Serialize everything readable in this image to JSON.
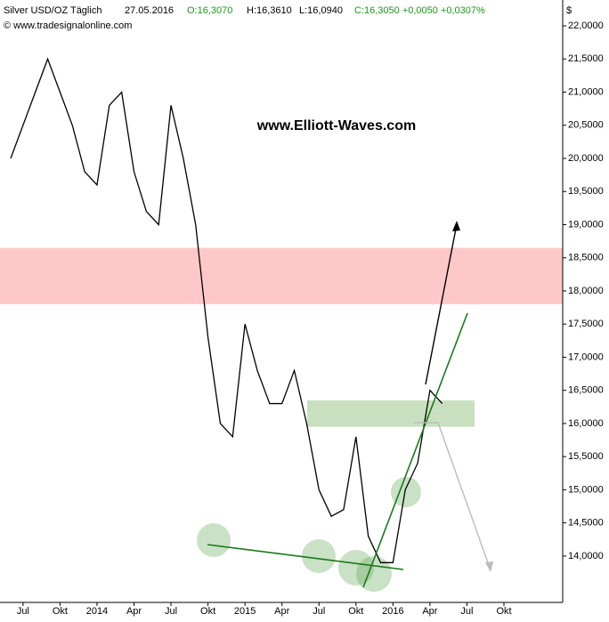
{
  "chart_data": {
    "type": "line",
    "title": "www.Elliott-Waves.com",
    "y_label": "$",
    "header": {
      "symbol": "Silver USD/OZ Täglich",
      "date": "27.05.2016",
      "open": "O:16,3070",
      "high": "H:16,3610",
      "low": "L:16,0940",
      "change": "C:16,3050 +0,0050 +0,0307%",
      "source": "© www.tradesignalonline.com"
    },
    "categories": [
      null,
      "Jul",
      null,
      null,
      "Okt",
      null,
      null,
      "2014",
      null,
      null,
      "Apr",
      null,
      null,
      "Jul",
      null,
      null,
      "Okt",
      null,
      null,
      "2015",
      null,
      null,
      "Apr",
      null,
      null,
      "Jul",
      null,
      null,
      "Okt",
      null,
      null,
      "2016",
      null,
      null,
      "Apr",
      null,
      null,
      "Jul",
      null,
      null,
      "Okt"
    ],
    "series": [
      {
        "name": "Silver USD/OZ",
        "color": "#000000",
        "values": [
          20.0,
          20.5,
          21.0,
          21.5,
          21.0,
          20.5,
          19.8,
          19.6,
          20.8,
          21.0,
          19.8,
          19.2,
          19.0,
          20.8,
          20.0,
          19.0,
          17.3,
          16.0,
          15.8,
          17.5,
          16.8,
          16.3,
          16.3,
          16.8,
          16.0,
          15.0,
          14.6,
          14.7,
          15.8,
          14.3,
          13.9,
          13.9,
          15.0,
          15.4,
          16.5,
          16.3,
          null,
          null,
          null,
          null,
          null
        ]
      }
    ],
    "zones": [
      {
        "from": 17.8,
        "to": 18.65,
        "color": "#ffc8c8"
      },
      {
        "from": 15.95,
        "to": 16.35,
        "color": "#c8e0c0"
      }
    ],
    "ylim": [
      13.3,
      22.39
    ],
    "yticks": [
      {
        "value": 14,
        "label": "14,0000"
      },
      {
        "value": 14.5,
        "label": "14,5000"
      },
      {
        "value": 15,
        "label": "15,0000"
      },
      {
        "value": 15.5,
        "label": "15,5000"
      },
      {
        "value": 16,
        "label": "16,0000"
      },
      {
        "value": 16.5,
        "label": "16,5000"
      },
      {
        "value": 17,
        "label": "17,0000"
      },
      {
        "value": 17.5,
        "label": "17,5000"
      },
      {
        "value": 18,
        "label": "18,0000"
      },
      {
        "value": 18.5,
        "label": "18,5000"
      },
      {
        "value": 19,
        "label": "19,0000"
      },
      {
        "value": 19.5,
        "label": "19,5000"
      },
      {
        "value": 20,
        "label": "20,0000"
      },
      {
        "value": 20.5,
        "label": "20,5000"
      },
      {
        "value": 21,
        "label": "21,0000"
      },
      {
        "value": 21.5,
        "label": "21,5000"
      },
      {
        "value": 22,
        "label": "22,0000"
      }
    ]
  }
}
